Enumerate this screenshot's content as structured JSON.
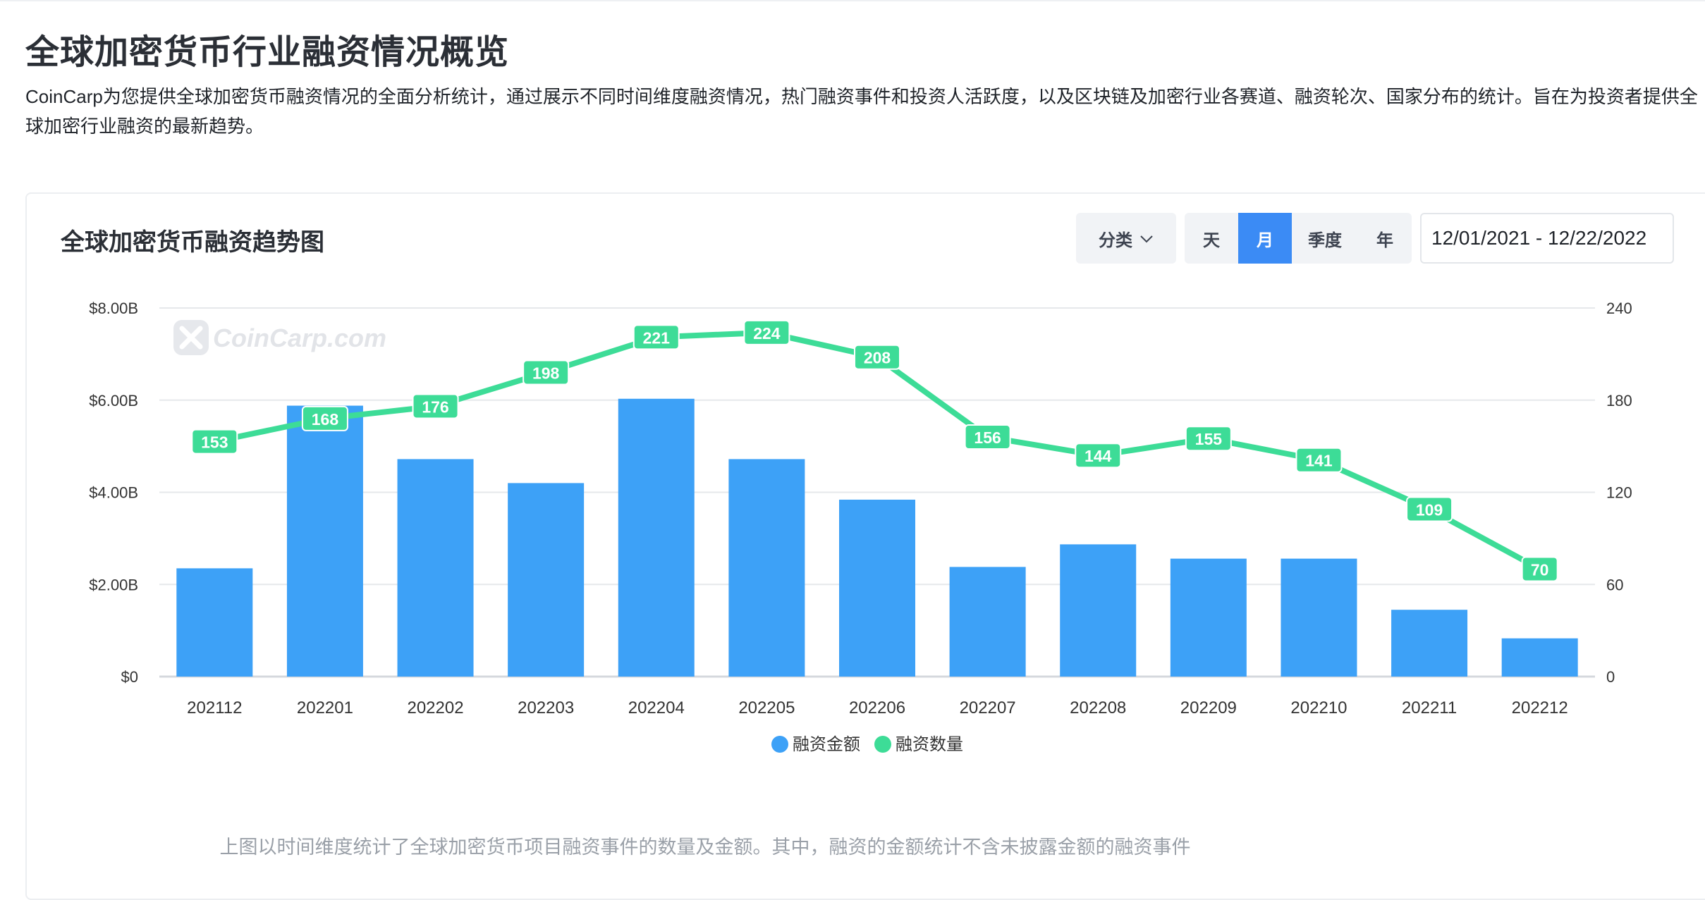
{
  "page": {
    "title": "全球加密货币行业融资情况概览",
    "intro": "CoinCarp为您提供全球加密货币融资情况的全面分析统计，通过展示不同时间维度融资情况，热门融资事件和投资人活跃度，以及区块链及加密行业各赛道、融资轮次、国家分布的统计。旨在为投资者提供全球加密行业融资的最新趋势。"
  },
  "card": {
    "title": "全球加密货币融资趋势图",
    "category_button": "分类",
    "period_buttons": [
      "天",
      "月",
      "季度",
      "年"
    ],
    "active_period": "月",
    "date_range": "12/01/2021 - 12/22/2022",
    "watermark": "CoinCarp.com",
    "footnote": "上图以时间维度统计了全球加密货币项目融资事件的数量及金额。其中，融资的金额统计不含未披露金额的融资事件"
  },
  "colors": {
    "bar": "#3da1f7",
    "line": "#3ddc97",
    "active_button": "#3b8bf5"
  },
  "chart_data": {
    "type": "bar",
    "categories": [
      "202112",
      "202201",
      "202202",
      "202203",
      "202204",
      "202205",
      "202206",
      "202207",
      "202208",
      "202209",
      "202210",
      "202211",
      "202212"
    ],
    "series": [
      {
        "name": "融资金额",
        "type": "bar",
        "axis": "left",
        "values": [
          2.35,
          5.88,
          4.72,
          4.2,
          6.03,
          4.72,
          3.84,
          2.38,
          2.87,
          2.56,
          2.56,
          1.45,
          0.83
        ]
      },
      {
        "name": "融资数量",
        "type": "line",
        "axis": "right",
        "values": [
          153,
          168,
          176,
          198,
          221,
          224,
          208,
          156,
          144,
          155,
          141,
          109,
          70
        ]
      }
    ],
    "y_left": {
      "min": 0,
      "max": 8,
      "ticks": [
        "$0",
        "$2.00B",
        "$4.00B",
        "$6.00B",
        "$8.00B"
      ]
    },
    "y_right": {
      "min": 0,
      "max": 240,
      "ticks": [
        "0",
        "60",
        "120",
        "180",
        "240"
      ]
    },
    "grid": true,
    "legend_position": "bottom-center"
  }
}
